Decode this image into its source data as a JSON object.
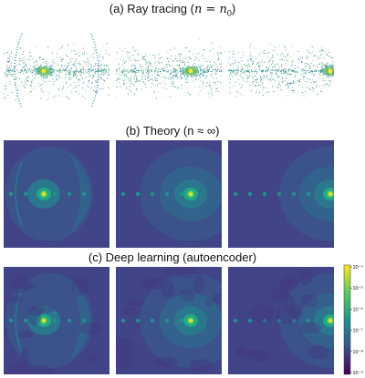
{
  "figure": {
    "rows": [
      {
        "key": "a",
        "title": "(a) Ray tracing (",
        "math": "n = n",
        "sub": "0",
        "close": ")",
        "style": "scatter"
      },
      {
        "key": "b",
        "title": "(b) Theory (n ≈ ∞)",
        "style": "field"
      },
      {
        "key": "c",
        "title": "(c) Deep learning (autoencoder)",
        "style": "field"
      }
    ],
    "colorbar": {
      "ticks": [
        "10⁻⁴",
        "10⁻⁵",
        "10⁻⁶",
        "10⁻⁷",
        "10⁻⁸",
        "10⁻⁹"
      ],
      "colors": [
        "#fde725",
        "#5ec962",
        "#21918c",
        "#3b528b",
        "#440154"
      ]
    }
  }
}
